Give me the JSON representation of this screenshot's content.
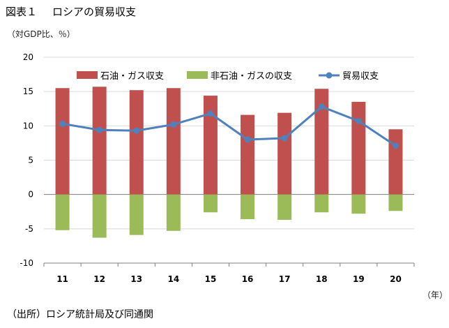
{
  "figure": {
    "number": "図表１",
    "title": "ロシアの貿易収支",
    "unit_label": "（対GDP比、％）",
    "x_unit_label": "（年）",
    "source": "（出所）ロシア統計局及び同通関"
  },
  "chart_data": {
    "type": "bar",
    "title": "ロシアの貿易収支",
    "xlabel": "（年）",
    "ylabel": "（対GDP比、％）",
    "categories": [
      "11",
      "12",
      "13",
      "14",
      "15",
      "16",
      "17",
      "18",
      "19",
      "20"
    ],
    "ylim": [
      -10,
      20
    ],
    "yticks": [
      -10,
      -5,
      0,
      5,
      10,
      15,
      20
    ],
    "grid": true,
    "legend_position": "top",
    "series": [
      {
        "name": "石油・ガス収支",
        "type": "bar",
        "color": "#c0504d",
        "values": [
          15.5,
          15.7,
          15.2,
          15.5,
          14.4,
          11.6,
          11.9,
          15.4,
          13.5,
          9.5
        ]
      },
      {
        "name": "非石油・ガスの収支",
        "type": "bar",
        "color": "#9bbb59",
        "values": [
          -5.2,
          -6.3,
          -5.9,
          -5.3,
          -2.6,
          -3.6,
          -3.7,
          -2.6,
          -2.8,
          -2.4
        ]
      },
      {
        "name": "貿易収支",
        "type": "line",
        "color": "#4f81bd",
        "values": [
          10.3,
          9.4,
          9.3,
          10.2,
          11.8,
          8.0,
          8.2,
          12.8,
          10.7,
          7.1
        ]
      }
    ]
  }
}
